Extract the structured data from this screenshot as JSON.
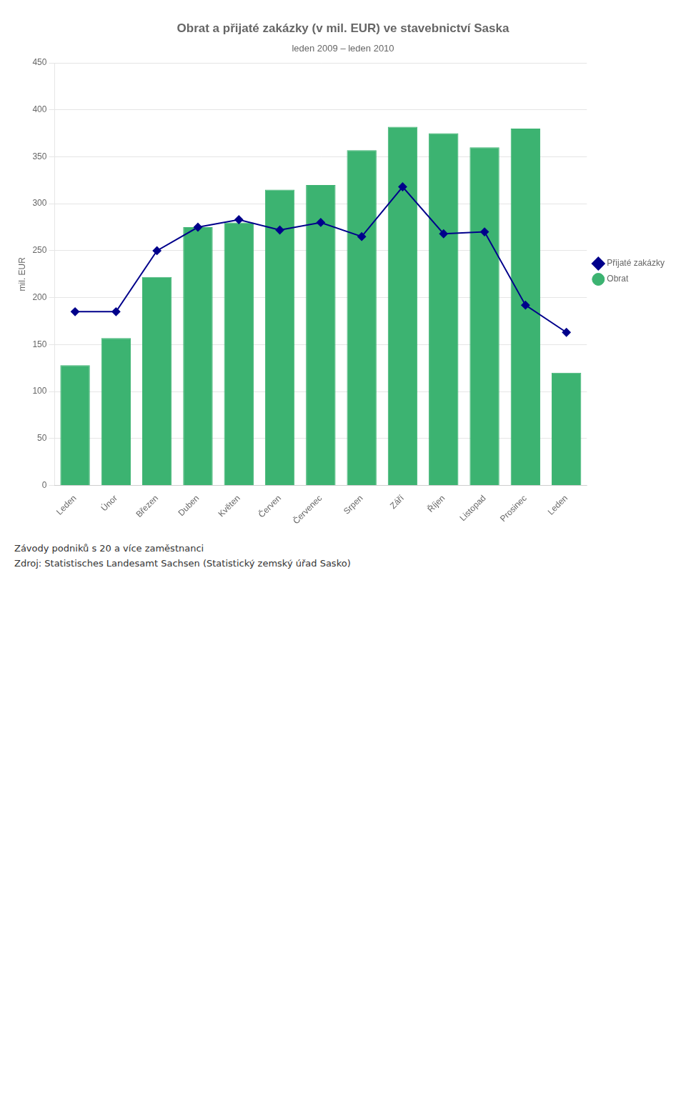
{
  "chart_data": {
    "type": "bar",
    "title": "Obrat a přijaté zakázky (v mil. EUR) ve stavebnictví Saska",
    "subtitle": "leden 2009 – leden 2010",
    "ylabel": "mil. EUR",
    "categories": [
      "Leden",
      "Únor",
      "Březen",
      "Duben",
      "Květen",
      "Červen",
      "Červenec",
      "Srpen",
      "Září",
      "Říjen",
      "Listopad",
      "Prosinec",
      "Leden"
    ],
    "series": [
      {
        "name": "Obrat",
        "type": "bar",
        "color": "#3cb371",
        "values": [
          128,
          157,
          222,
          275,
          280,
          315,
          320,
          357,
          382,
          375,
          360,
          380,
          120
        ]
      },
      {
        "name": "Přijaté zakázky",
        "type": "line",
        "color": "#00008b",
        "marker": "diamond",
        "values": [
          185,
          185,
          250,
          275,
          283,
          272,
          280,
          265,
          318,
          268,
          270,
          192,
          163
        ]
      }
    ],
    "ylim": [
      0,
      450
    ],
    "yticks": [
      0,
      50,
      100,
      150,
      200,
      250,
      300,
      350,
      400,
      450
    ],
    "grid": true,
    "legend": "right",
    "annotations": [
      "Závody podniků s 20 a více zaměstnanci",
      "Zdroj: Statistisches Landesamt Sachsen (Statistický zemský úřad Sasko)"
    ]
  }
}
